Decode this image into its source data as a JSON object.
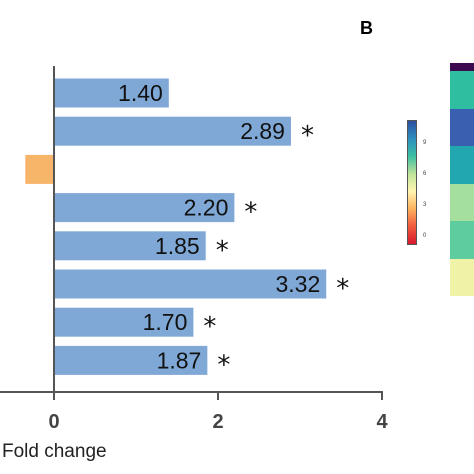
{
  "panel_label": "B",
  "chart_data": {
    "type": "bar",
    "orientation": "horizontal",
    "xlabel": "Fold change",
    "xlim": [
      0,
      4
    ],
    "xticks": [
      0,
      2,
      4
    ],
    "bars": [
      {
        "value": 1.4,
        "label": "1.40",
        "star": false,
        "color": "#7fa8d6"
      },
      {
        "value": 2.89,
        "label": "2.89",
        "star": true,
        "color": "#7fa8d6"
      },
      {
        "value": -0.35,
        "label": "",
        "star": false,
        "color": "#f7b56a"
      },
      {
        "value": 2.2,
        "label": "2.20",
        "star": true,
        "color": "#7fa8d6"
      },
      {
        "value": 1.85,
        "label": "1.85",
        "star": true,
        "color": "#7fa8d6"
      },
      {
        "value": 3.32,
        "label": "3.32",
        "star": true,
        "color": "#7fa8d6"
      },
      {
        "value": 1.7,
        "label": "1.70",
        "star": true,
        "color": "#7fa8d6"
      },
      {
        "value": 1.87,
        "label": "1.87",
        "star": true,
        "color": "#7fa8d6"
      }
    ],
    "star_symbol": "*",
    "grid": false
  },
  "colorbar": {
    "ticks": [
      "9",
      "6",
      "3",
      "0"
    ],
    "colors": [
      "#2b4fa0",
      "#2f8fbf",
      "#3bbfa3",
      "#bfe39a",
      "#fff5b0",
      "#fdb15f",
      "#f15a3c",
      "#d7192f"
    ]
  },
  "heatmap": {
    "colors": [
      "#2fbfa0",
      "#3a5fb0",
      "#22a7b0",
      "#a5df9d",
      "#5fcc9f",
      "#f0f3a7"
    ]
  }
}
